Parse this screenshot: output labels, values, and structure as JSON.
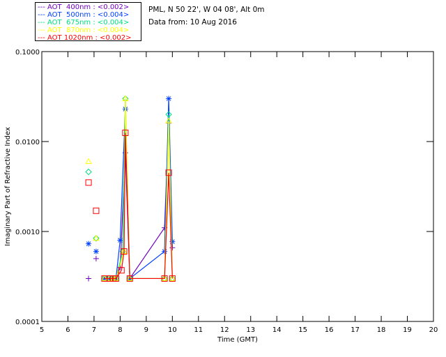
{
  "header": {
    "site": "PML, N 50 22', W 04 08', Alt 0m",
    "date": "Data from: 10 Aug 2016"
  },
  "chart_data": {
    "type": "line",
    "xlabel": "Time (GMT)",
    "ylabel": "Imaginary Part of Refractive Index",
    "xlim": [
      5,
      20
    ],
    "ylim": [
      0.0001,
      0.1
    ],
    "yscale": "log",
    "xticks": [
      "5",
      "6",
      "7",
      "8",
      "9",
      "10",
      "11",
      "12",
      "13",
      "14",
      "15",
      "16",
      "17",
      "18",
      "19",
      "20"
    ],
    "yticks": [
      "0.0001",
      "0.0010",
      "0.0100",
      "0.1000"
    ],
    "legend_placement": "top-left outside",
    "series": [
      {
        "name": "AOT  400nm : <0.002>",
        "color": "#7000c0",
        "marker": "plus",
        "x": [
          6.79,
          7.08,
          7.4,
          7.6,
          7.73,
          7.84,
          8.0,
          8.2,
          8.37,
          9.7,
          9.86,
          10.0
        ],
        "y": [
          0.0003,
          0.0005,
          0.0003,
          0.0003,
          0.0003,
          0.0003,
          0.0004,
          0.0075,
          0.0003,
          0.0011,
          0.016,
          0.00066
        ]
      },
      {
        "name": "AOT  500nm : <0.004>",
        "color": "#0040ff",
        "marker": "star",
        "x": [
          6.79,
          7.08,
          7.4,
          7.6,
          7.73,
          7.84,
          8.0,
          8.2,
          8.37,
          9.7,
          9.86,
          10.0
        ],
        "y": [
          0.00073,
          0.0006,
          0.0003,
          0.0003,
          0.0003,
          0.0003,
          0.0008,
          0.023,
          0.0003,
          0.0006,
          0.03,
          0.00077
        ]
      },
      {
        "name": "AOT  675nm : <0.004>",
        "color": "#00e080",
        "marker": "diamond",
        "x": [
          6.79,
          7.08,
          7.4,
          7.6,
          7.73,
          7.84,
          8.1,
          8.2,
          8.37,
          9.7,
          9.86,
          10.0
        ],
        "y": [
          0.0046,
          0.00084,
          0.0003,
          0.0003,
          0.0003,
          0.0003,
          0.0006,
          0.03,
          0.0003,
          0.0003,
          0.02,
          0.0003
        ]
      },
      {
        "name": "AOT  870nm : <0.004>",
        "color": "#ffff00",
        "marker": "triangle",
        "x": [
          6.79,
          7.08,
          7.4,
          7.6,
          7.73,
          7.84,
          8.15,
          8.2,
          8.37,
          9.7,
          9.86,
          10.0
        ],
        "y": [
          0.006,
          0.00084,
          0.0003,
          0.0003,
          0.0003,
          0.0003,
          0.0006,
          0.03,
          0.0003,
          0.0003,
          0.017,
          0.0003
        ]
      },
      {
        "name": "AOT 1020nm : <0.002>",
        "color": "#ff0000",
        "marker": "square",
        "x": [
          6.79,
          7.08,
          7.4,
          7.6,
          7.73,
          7.84,
          8.05,
          8.15,
          8.2,
          8.37,
          9.7,
          9.86,
          10.0
        ],
        "y": [
          0.0035,
          0.0017,
          0.0003,
          0.0003,
          0.0003,
          0.0003,
          0.00037,
          0.0006,
          0.0125,
          0.0003,
          0.0003,
          0.0045,
          0.0003
        ]
      }
    ]
  }
}
